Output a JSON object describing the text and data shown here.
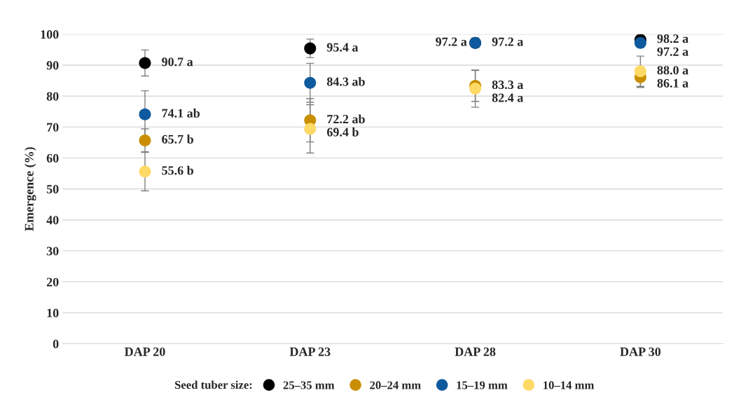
{
  "chart_data": {
    "type": "scatter",
    "ylabel": "Emergence (%)",
    "legend_title": "Seed tuber size:",
    "categories": [
      "DAP 20",
      "DAP 23",
      "DAP 28",
      "DAP 30"
    ],
    "series": [
      {
        "name": "25–35 mm",
        "color": "#000000",
        "values": [
          90.7,
          95.4,
          97.2,
          98.2
        ],
        "errors": [
          4.2,
          3,
          1.5,
          1.2
        ],
        "value_labels": [
          "90.7 a",
          "95.4 a",
          "97.2 a",
          "98.2 a"
        ]
      },
      {
        "name": "20–24 mm",
        "color": "#c98f00",
        "values": [
          65.7,
          72.2,
          83.3,
          86.1
        ],
        "errors": [
          3.7,
          7,
          5,
          3.3
        ],
        "value_labels": [
          "65.7 b",
          "72.2 ab",
          "83.3 a",
          "86.1 a"
        ]
      },
      {
        "name": "15–19 mm",
        "color": "#0f5a9e",
        "values": [
          74.1,
          84.3,
          97.2,
          97.2
        ],
        "errors": [
          7.6,
          6.3,
          1.5,
          1.5
        ],
        "value_labels": [
          "74.1 ab",
          "84.3 ab",
          "97.2 a",
          "97.2 a"
        ]
      },
      {
        "name": "10–14 mm",
        "color": "#ffd966",
        "values": [
          55.6,
          69.4,
          82.4,
          88.0
        ],
        "errors": [
          6.2,
          7.8,
          6,
          4.9
        ],
        "value_labels": [
          "55.6 b",
          "69.4 b",
          "82.4 a",
          "88.0 a"
        ]
      }
    ],
    "ylim": [
      0,
      100
    ],
    "yticks": [
      0,
      10,
      20,
      30,
      40,
      50,
      60,
      70,
      80,
      90,
      100
    ],
    "grid": "y",
    "legend": "bottom",
    "marker": "circle"
  }
}
